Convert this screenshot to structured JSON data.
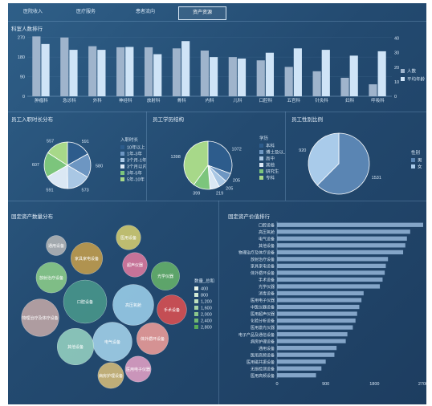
{
  "tabs": [
    "医院收入",
    "医疗服务",
    "患者流向",
    "资产资源"
  ],
  "active_tab": 3,
  "panels": {
    "staff_ranking": "科室人数排行",
    "tenure": "员工入职时长分布",
    "education": "员工学历结构",
    "gender": "员工性别比例",
    "asset_bubble": "固定资产数量分布",
    "asset_value": "固定资产价值排行"
  },
  "colors": {
    "bar_a": "#9fb4cc",
    "bar_b": "#cfe4f7",
    "pie": [
      "#2d5c8c",
      "#6d96c2",
      "#a9c7e4",
      "#dbe8f4",
      "#7cc57c",
      "#a7d889"
    ]
  },
  "chart_data": [
    {
      "type": "bar",
      "title": "科室人数排行",
      "categories": [
        "肿瘤科",
        "急诊科",
        "外科",
        "神经科",
        "放射科",
        "骨科",
        "内科",
        "儿科",
        "口腔科",
        "五官科",
        "针灸科",
        "妇科",
        "呼吸科"
      ],
      "series": [
        {
          "name": "人数",
          "values": [
            275,
            270,
            230,
            225,
            225,
            220,
            210,
            180,
            165,
            135,
            115,
            85,
            55
          ]
        },
        {
          "name": "平均年龄",
          "values": [
            36,
            32,
            32,
            34,
            29,
            38,
            27,
            26,
            30,
            33,
            32,
            28,
            31
          ]
        }
      ],
      "ylim": [
        0,
        280
      ],
      "yticks": [
        0,
        90,
        180,
        270
      ],
      "y2lim": [
        0,
        42
      ],
      "y2ticks": [
        0,
        10,
        20,
        30,
        40
      ],
      "legend": "right"
    },
    {
      "type": "pie",
      "title": "员工入职时长分布",
      "legend_title": "入职时长",
      "labels": [
        "10年以上",
        "1年-3年",
        "3个月-1年",
        "3个月以内",
        "3年-5年",
        "5年-10年"
      ],
      "values": [
        591,
        580,
        573,
        591,
        607,
        557
      ]
    },
    {
      "type": "pie",
      "title": "员工学历结构",
      "legend_title": "学历",
      "labels": [
        "本科",
        "博士及以上",
        "高中",
        "其他",
        "研究生",
        "专科"
      ],
      "values": [
        1072,
        205,
        205,
        219,
        399,
        1398
      ]
    },
    {
      "type": "pie",
      "title": "员工性别比例",
      "legend_title": "性别",
      "labels": [
        "男",
        "女"
      ],
      "values": [
        1531,
        920
      ]
    },
    {
      "type": "scatter",
      "title": "固定资产数量分布",
      "legend_title": "数量_总和",
      "legend_values": [
        400,
        800,
        1200,
        1600,
        2000,
        2400,
        2800
      ],
      "items": [
        {
          "label": "口腔设备",
          "value": 2800,
          "color": "#4a9a8c"
        },
        {
          "label": "高压氧舱",
          "value": 2500,
          "color": "#9fd3ef"
        },
        {
          "label": "电气设备",
          "value": 2300,
          "color": "#a8d8f0"
        },
        {
          "label": "其他设备",
          "value": 2000,
          "color": "#99d6c4"
        },
        {
          "label": "物理治疗及体疗设备",
          "value": 2100,
          "color": "#c7aaa8"
        },
        {
          "label": "放射治疗设备",
          "value": 1400,
          "color": "#8fd18a"
        },
        {
          "label": "家具家电设备",
          "value": 1500,
          "color": "#c9a04a"
        },
        {
          "label": "光学仪器",
          "value": 1200,
          "color": "#67b56a"
        },
        {
          "label": "手术设备",
          "value": 1300,
          "color": "#e05050"
        },
        {
          "label": "体外循环设备",
          "value": 1500,
          "color": "#f5a09a"
        },
        {
          "label": "病房护理设备",
          "value": 1000,
          "color": "#d9c07a"
        },
        {
          "label": "医用电子仪器",
          "value": 1000,
          "color": "#e8a3c8"
        },
        {
          "label": "超声仪器",
          "value": 900,
          "color": "#e37aa0"
        },
        {
          "label": "医用设备",
          "value": 900,
          "color": "#d8d070"
        },
        {
          "label": "通用设备",
          "value": 600,
          "color": "#b8b8b8"
        }
      ]
    },
    {
      "type": "bar",
      "title": "固定资产价值排行",
      "categories": [
        "口腔设备",
        "高压氧舱",
        "电气设备",
        "其他设备",
        "物理治疗及体疗设备",
        "放射治疗设备",
        "家具家电设备",
        "体外循环设备",
        "手术设备",
        "光学仪器",
        "消毒设备",
        "医用电子仪器",
        "中医仪器设备",
        "医用超声仪器",
        "化验分析设备",
        "医用激光仪器",
        "电子产品及通信设备",
        "病房护理设备",
        "通用设备",
        "医用高频设备",
        "医用磁共振设备",
        "无损检测设备",
        "医用高频设备"
      ],
      "values": [
        2700,
        2460,
        2400,
        2370,
        2330,
        2050,
        2010,
        1990,
        1950,
        1900,
        1600,
        1560,
        1520,
        1480,
        1450,
        1400,
        1300,
        1270,
        1100,
        1060,
        900,
        820,
        720
      ],
      "xlim": [
        0,
        2700
      ],
      "xticks": [
        0,
        900,
        1800,
        2700
      ]
    }
  ]
}
